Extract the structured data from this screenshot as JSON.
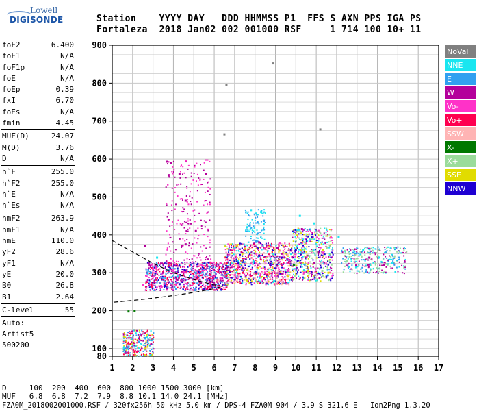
{
  "logo": {
    "line1": "Lowell",
    "line2": "DIGISONDE"
  },
  "header": {
    "labels": "Station    YYYY DAY   DDD HHMMSS P1  FFS S AXN PPS IGA PS",
    "values": "Fortaleza  2018 Jan02 002 001000 RSF     1 714 100 10+ 11"
  },
  "params": {
    "group1": [
      {
        "k": "foF2",
        "v": "6.400"
      },
      {
        "k": "foF1",
        "v": "N/A"
      },
      {
        "k": "foF1p",
        "v": "N/A"
      },
      {
        "k": "foE",
        "v": "N/A"
      },
      {
        "k": "foEp",
        "v": "0.39"
      },
      {
        "k": "fxI",
        "v": "6.70"
      },
      {
        "k": "foEs",
        "v": "N/A"
      },
      {
        "k": "fmin",
        "v": "4.45"
      }
    ],
    "group2": [
      {
        "k": "MUF(D)",
        "v": "24.07"
      },
      {
        "k": "M(D)",
        "v": "3.76"
      },
      {
        "k": "D",
        "v": "N/A"
      }
    ],
    "group3": [
      {
        "k": "h`F",
        "v": "255.0"
      },
      {
        "k": "h`F2",
        "v": "255.0"
      },
      {
        "k": "h`E",
        "v": "N/A"
      },
      {
        "k": "h`Es",
        "v": "N/A"
      }
    ],
    "group4": [
      {
        "k": "hmF2",
        "v": "263.9"
      },
      {
        "k": "hmF1",
        "v": "N/A"
      },
      {
        "k": "hmE",
        "v": "110.0"
      },
      {
        "k": "yF2",
        "v": "28.6"
      },
      {
        "k": "yF1",
        "v": "N/A"
      },
      {
        "k": "yE",
        "v": "20.0"
      },
      {
        "k": "B0",
        "v": "26.8"
      },
      {
        "k": "B1",
        "v": "2.64"
      }
    ],
    "clevel": {
      "k": "C-level",
      "v": "55"
    },
    "auto": [
      "Auto:",
      "Artist5",
      "500200"
    ]
  },
  "footer": {
    "line1": "D     100  200  400  600  800 1000 1500 3000 [km]",
    "line2": "MUF   6.8  6.8  7.2  7.9  8.8 10.1 14.0 24.1 [MHz]",
    "line3": "FZA0M_2018002001000.RSF / 320fx256h 50 kHz 5.0 km / DPS-4 FZA0M 904 / 3.9 S 321.6 E   Ion2Png 1.3.20"
  },
  "chart_data": {
    "type": "scatter",
    "xlabel": "",
    "ylabel": "",
    "xlim": [
      1,
      17
    ],
    "ylim": [
      80,
      900
    ],
    "x_ticks": [
      1,
      2,
      3,
      4,
      5,
      6,
      7,
      8,
      9,
      10,
      11,
      12,
      13,
      14,
      15,
      16,
      17
    ],
    "y_ticks": [
      100,
      200,
      300,
      400,
      500,
      600,
      700,
      800,
      900
    ],
    "y_tick_labels_extra": [
      80
    ],
    "grid": true,
    "legend_position": "right",
    "legend": [
      {
        "name": "NoVal",
        "color": "#808080"
      },
      {
        "name": "NNE",
        "color": "#19e6f0"
      },
      {
        "name": "E",
        "color": "#32a0f0"
      },
      {
        "name": "W",
        "color": "#b4009b"
      },
      {
        "name": "Vo-",
        "color": "#ff32c8"
      },
      {
        "name": "Vo+",
        "color": "#ff0050"
      },
      {
        "name": "SSW",
        "color": "#ffb4b4"
      },
      {
        "name": "X-",
        "color": "#007800"
      },
      {
        "name": "X+",
        "color": "#9bdc9b"
      },
      {
        "name": "SSE",
        "color": "#e1dc00"
      },
      {
        "name": "NNW",
        "color": "#1e00d2"
      }
    ],
    "series": [
      {
        "name": "NoVal",
        "points": [
          [
            8.9,
            852
          ],
          [
            6.6,
            795
          ],
          [
            6.5,
            665
          ],
          [
            11.2,
            678
          ]
        ]
      },
      {
        "name": "NNE",
        "points": [
          [
            7.8,
            465
          ],
          [
            8.3,
            460
          ],
          [
            10.2,
            450
          ],
          [
            10.9,
            430
          ],
          [
            12.1,
            395
          ],
          [
            13.3,
            360
          ],
          [
            14.7,
            325
          ],
          [
            3.2,
            340
          ],
          [
            4.2,
            290
          ],
          [
            7.6,
            420
          ]
        ]
      },
      {
        "name": "E",
        "points": [
          [
            1.8,
            105
          ],
          [
            2.3,
            118
          ],
          [
            2.6,
            128
          ],
          [
            1.6,
            95
          ],
          [
            2.9,
            300
          ],
          [
            5.1,
            300
          ]
        ]
      },
      {
        "name": "W",
        "points": [
          [
            2.6,
            370
          ],
          [
            3.9,
            590
          ],
          [
            4.3,
            560
          ],
          [
            5.6,
            560
          ],
          [
            4.6,
            490
          ],
          [
            5.1,
            410
          ],
          [
            4.6,
            375
          ],
          [
            3.5,
            300
          ],
          [
            6.8,
            360
          ],
          [
            8.2,
            380
          ],
          [
            9.1,
            365
          ],
          [
            10.3,
            415
          ],
          [
            11.1,
            355
          ],
          [
            13.6,
            340
          ],
          [
            14.3,
            320
          ]
        ]
      },
      {
        "name": "Vo-",
        "points": [
          [
            3.0,
            310
          ],
          [
            4.0,
            305
          ],
          [
            5.4,
            320
          ],
          [
            6.3,
            325
          ],
          [
            7.2,
            320
          ],
          [
            8.5,
            310
          ],
          [
            9.6,
            305
          ],
          [
            10.4,
            300
          ],
          [
            2.5,
            268
          ],
          [
            3.4,
            265
          ]
        ]
      },
      {
        "name": "Vo+",
        "points": [
          [
            5.8,
            295
          ],
          [
            6.6,
            290
          ],
          [
            7.4,
            300
          ],
          [
            8.6,
            295
          ],
          [
            1.8,
            88
          ],
          [
            2.1,
            90
          ]
        ]
      },
      {
        "name": "SSW",
        "points": [
          [
            6.2,
            280
          ],
          [
            7.0,
            275
          ],
          [
            8.0,
            285
          ],
          [
            9.2,
            280
          ]
        ]
      },
      {
        "name": "X-",
        "points": [
          [
            1.8,
            198
          ],
          [
            2.1,
            200
          ],
          [
            9.9,
            320
          ]
        ]
      },
      {
        "name": "X+",
        "points": [
          [
            10.6,
            300
          ],
          [
            11.3,
            305
          ],
          [
            12.5,
            330
          ]
        ]
      },
      {
        "name": "SSE",
        "points": [
          [
            2.6,
            100
          ],
          [
            7.6,
            280
          ],
          [
            9.6,
            290
          ],
          [
            10.6,
            305
          ],
          [
            11.6,
            300
          ]
        ]
      },
      {
        "name": "NNW",
        "points": [
          [
            8.2,
            345
          ],
          [
            10.0,
            360
          ],
          [
            4.3,
            270
          ],
          [
            3.6,
            265
          ],
          [
            7.0,
            330
          ],
          [
            9.3,
            340
          ]
        ]
      }
    ],
    "model_profile_dashed": [
      [
        1.0,
        385
      ],
      [
        2.0,
        355
      ],
      [
        3.0,
        325
      ],
      [
        4.0,
        300
      ],
      [
        5.0,
        282
      ],
      [
        6.0,
        268
      ],
      [
        6.4,
        264
      ],
      [
        6.0,
        258
      ],
      [
        5.0,
        248
      ],
      [
        4.0,
        240
      ],
      [
        3.0,
        233
      ],
      [
        2.0,
        227
      ],
      [
        1.0,
        222
      ]
    ]
  }
}
